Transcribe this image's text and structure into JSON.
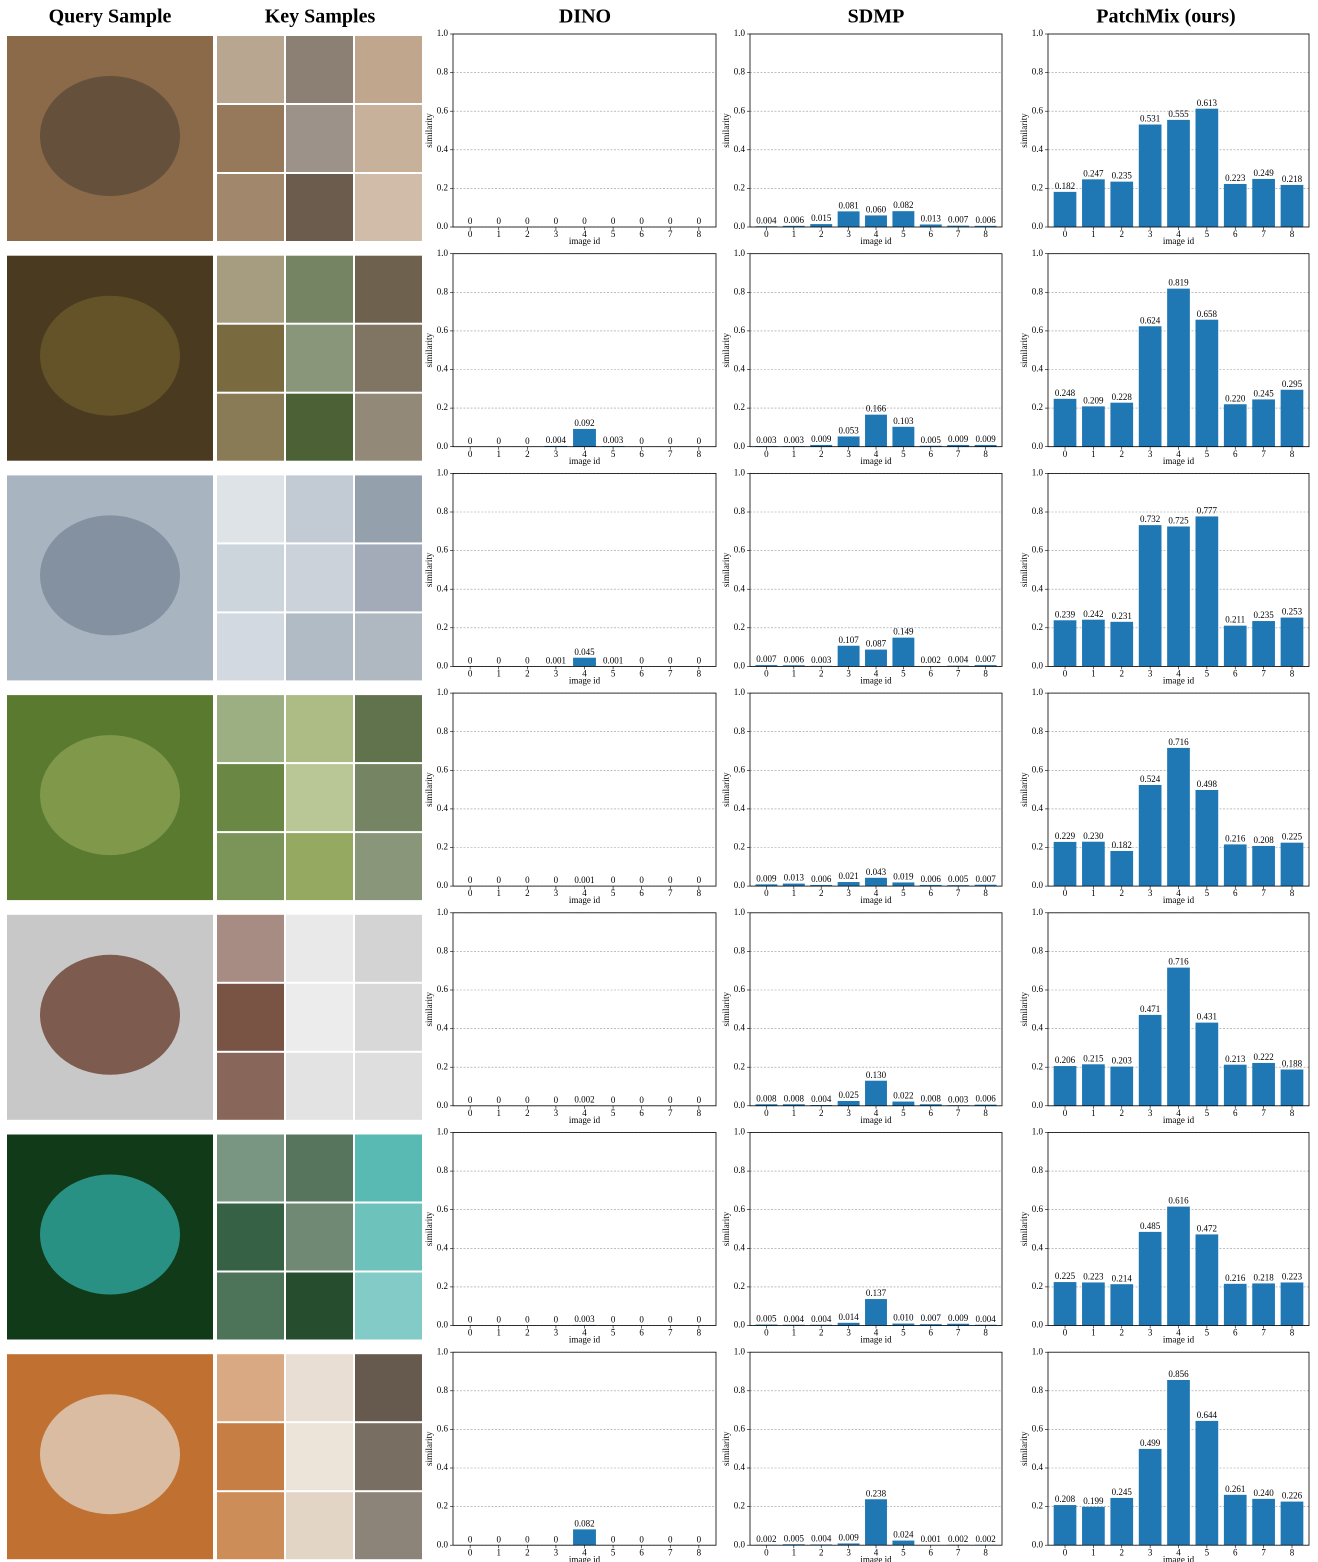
{
  "header": [
    "Query Sample",
    "Key Samples",
    "DINO",
    "SDMP",
    "PatchMix (ours)"
  ],
  "chart_data": [
    {
      "type": "bar",
      "categories": [
        "0",
        "1",
        "2",
        "3",
        "4",
        "5",
        "6",
        "7",
        "8"
      ],
      "values": [
        0,
        0,
        0,
        0,
        0,
        0,
        0,
        0,
        0
      ],
      "value_labels": [
        "0",
        "0",
        "0",
        "0",
        "0",
        "0",
        "0",
        "0",
        "0"
      ],
      "color": "#1f77b4",
      "ylim": [
        0,
        1
      ],
      "yticks": [
        {
          "value": 0,
          "label": "0.0"
        },
        0.2,
        0.4,
        0.6,
        0.8,
        {
          "value": 1,
          "label": "1.0"
        }
      ],
      "xlabel": "image id",
      "ylabel": "similarity",
      "grid": true
    },
    {
      "type": "bar",
      "categories": [
        "0",
        "1",
        "2",
        "3",
        "4",
        "5",
        "6",
        "7",
        "8"
      ],
      "values": [
        0.004,
        0.006,
        0.015,
        0.081,
        0.06,
        0.082,
        0.013,
        0.007,
        0.006
      ],
      "value_labels": [
        "0.004",
        "0.006",
        "0.015",
        "0.081",
        "0.060",
        "0.082",
        "0.013",
        "0.007",
        "0.006"
      ],
      "color": "#1f77b4",
      "ylim": [
        0,
        1
      ],
      "yticks": [
        {
          "value": 0,
          "label": "0.0"
        },
        0.2,
        0.4,
        0.6,
        0.8,
        {
          "value": 1,
          "label": "1.0"
        }
      ],
      "xlabel": "image id",
      "ylabel": "similarity",
      "grid": true
    },
    {
      "type": "bar",
      "categories": [
        "0",
        "1",
        "2",
        "3",
        "4",
        "5",
        "6",
        "7",
        "8"
      ],
      "values": [
        0.182,
        0.247,
        0.235,
        0.531,
        0.555,
        0.613,
        0.223,
        0.249,
        0.218
      ],
      "value_labels": [
        "0.182",
        "0.247",
        "0.235",
        "0.531",
        "0.555",
        "0.613",
        "0.223",
        "0.249",
        "0.218"
      ],
      "color": "#1f77b4",
      "ylim": [
        0,
        1
      ],
      "yticks": [
        {
          "value": 0,
          "label": "0.0"
        },
        0.2,
        0.4,
        0.6,
        0.8,
        {
          "value": 1,
          "label": "1.0"
        }
      ],
      "xlabel": "image id",
      "ylabel": "similarity",
      "grid": true
    },
    {
      "type": "bar",
      "categories": [
        "0",
        "1",
        "2",
        "3",
        "4",
        "5",
        "6",
        "7",
        "8"
      ],
      "values": [
        0,
        0,
        0,
        0.004,
        0.092,
        0.003,
        0,
        0,
        0
      ],
      "value_labels": [
        "0",
        "0",
        "0",
        "0.004",
        "0.092",
        "0.003",
        "0",
        "0",
        "0"
      ],
      "color": "#1f77b4",
      "ylim": [
        0,
        1
      ],
      "yticks": [
        {
          "value": 0,
          "label": "0.0"
        },
        0.2,
        0.4,
        0.6,
        0.8,
        {
          "value": 1,
          "label": "1.0"
        }
      ],
      "xlabel": "image id",
      "ylabel": "similarity",
      "grid": true
    },
    {
      "type": "bar",
      "categories": [
        "0",
        "1",
        "2",
        "3",
        "4",
        "5",
        "6",
        "7",
        "8"
      ],
      "values": [
        0.003,
        0.003,
        0.009,
        0.053,
        0.166,
        0.103,
        0.005,
        0.009,
        0.009
      ],
      "value_labels": [
        "0.003",
        "0.003",
        "0.009",
        "0.053",
        "0.166",
        "0.103",
        "0.005",
        "0.009",
        "0.009"
      ],
      "color": "#1f77b4",
      "ylim": [
        0,
        1
      ],
      "yticks": [
        {
          "value": 0,
          "label": "0.0"
        },
        0.2,
        0.4,
        0.6,
        0.8,
        {
          "value": 1,
          "label": "1.0"
        }
      ],
      "xlabel": "image id",
      "ylabel": "similarity",
      "grid": true
    },
    {
      "type": "bar",
      "categories": [
        "0",
        "1",
        "2",
        "3",
        "4",
        "5",
        "6",
        "7",
        "8"
      ],
      "values": [
        0.248,
        0.209,
        0.228,
        0.624,
        0.819,
        0.658,
        0.22,
        0.245,
        0.295
      ],
      "value_labels": [
        "0.248",
        "0.209",
        "0.228",
        "0.624",
        "0.819",
        "0.658",
        "0.220",
        "0.245",
        "0.295"
      ],
      "color": "#1f77b4",
      "ylim": [
        0,
        1
      ],
      "yticks": [
        {
          "value": 0,
          "label": "0.0"
        },
        0.2,
        0.4,
        0.6,
        0.8,
        {
          "value": 1,
          "label": "1.0"
        }
      ],
      "xlabel": "image id",
      "ylabel": "similarity",
      "grid": true
    },
    {
      "type": "bar",
      "categories": [
        "0",
        "1",
        "2",
        "3",
        "4",
        "5",
        "6",
        "7",
        "8"
      ],
      "values": [
        0,
        0,
        0,
        0.001,
        0.045,
        0.001,
        0,
        0,
        0
      ],
      "value_labels": [
        "0",
        "0",
        "0",
        "0.001",
        "0.045",
        "0.001",
        "0",
        "0",
        "0"
      ],
      "color": "#1f77b4",
      "ylim": [
        0,
        1
      ],
      "yticks": [
        {
          "value": 0,
          "label": "0.0"
        },
        0.2,
        0.4,
        0.6,
        0.8,
        {
          "value": 1,
          "label": "1.0"
        }
      ],
      "xlabel": "image id",
      "ylabel": "similarity",
      "grid": true
    },
    {
      "type": "bar",
      "categories": [
        "0",
        "1",
        "2",
        "3",
        "4",
        "5",
        "6",
        "7",
        "8"
      ],
      "values": [
        0.007,
        0.006,
        0.003,
        0.107,
        0.087,
        0.149,
        0.002,
        0.004,
        0.007
      ],
      "value_labels": [
        "0.007",
        "0.006",
        "0.003",
        "0.107",
        "0.087",
        "0.149",
        "0.002",
        "0.004",
        "0.007"
      ],
      "color": "#1f77b4",
      "ylim": [
        0,
        1
      ],
      "yticks": [
        {
          "value": 0,
          "label": "0.0"
        },
        0.2,
        0.4,
        0.6,
        0.8,
        {
          "value": 1,
          "label": "1.0"
        }
      ],
      "xlabel": "image id",
      "ylabel": "similarity",
      "grid": true
    },
    {
      "type": "bar",
      "categories": [
        "0",
        "1",
        "2",
        "3",
        "4",
        "5",
        "6",
        "7",
        "8"
      ],
      "values": [
        0.239,
        0.242,
        0.231,
        0.732,
        0.725,
        0.777,
        0.211,
        0.235,
        0.253
      ],
      "value_labels": [
        "0.239",
        "0.242",
        "0.231",
        "0.732",
        "0.725",
        "0.777",
        "0.211",
        "0.235",
        "0.253"
      ],
      "color": "#1f77b4",
      "ylim": [
        0,
        1
      ],
      "yticks": [
        {
          "value": 0,
          "label": "0.0"
        },
        0.2,
        0.4,
        0.6,
        0.8,
        {
          "value": 1,
          "label": "1.0"
        }
      ],
      "xlabel": "image id",
      "ylabel": "similarity",
      "grid": true
    },
    {
      "type": "bar",
      "categories": [
        "0",
        "1",
        "2",
        "3",
        "4",
        "5",
        "6",
        "7",
        "8"
      ],
      "values": [
        0,
        0,
        0,
        0,
        0.001,
        0,
        0,
        0,
        0
      ],
      "value_labels": [
        "0",
        "0",
        "0",
        "0",
        "0.001",
        "0",
        "0",
        "0",
        "0"
      ],
      "color": "#1f77b4",
      "ylim": [
        0,
        1
      ],
      "yticks": [
        {
          "value": 0,
          "label": "0.0"
        },
        0.2,
        0.4,
        0.6,
        0.8,
        {
          "value": 1,
          "label": "1.0"
        }
      ],
      "xlabel": "image id",
      "ylabel": "similarity",
      "grid": true
    },
    {
      "type": "bar",
      "categories": [
        "0",
        "1",
        "2",
        "3",
        "4",
        "5",
        "6",
        "7",
        "8"
      ],
      "values": [
        0.009,
        0.013,
        0.006,
        0.021,
        0.043,
        0.019,
        0.006,
        0.005,
        0.007
      ],
      "value_labels": [
        "0.009",
        "0.013",
        "0.006",
        "0.021",
        "0.043",
        "0.019",
        "0.006",
        "0.005",
        "0.007"
      ],
      "color": "#1f77b4",
      "ylim": [
        0,
        1
      ],
      "yticks": [
        {
          "value": 0,
          "label": "0.0"
        },
        0.2,
        0.4,
        0.6,
        0.8,
        {
          "value": 1,
          "label": "1.0"
        }
      ],
      "xlabel": "image id",
      "ylabel": "similarity",
      "grid": true
    },
    {
      "type": "bar",
      "categories": [
        "0",
        "1",
        "2",
        "3",
        "4",
        "5",
        "6",
        "7",
        "8"
      ],
      "values": [
        0.229,
        0.23,
        0.182,
        0.524,
        0.716,
        0.498,
        0.216,
        0.208,
        0.225
      ],
      "value_labels": [
        "0.229",
        "0.230",
        "0.182",
        "0.524",
        "0.716",
        "0.498",
        "0.216",
        "0.208",
        "0.225"
      ],
      "color": "#1f77b4",
      "ylim": [
        0,
        1
      ],
      "yticks": [
        {
          "value": 0,
          "label": "0.0"
        },
        0.2,
        0.4,
        0.6,
        0.8,
        {
          "value": 1,
          "label": "1.0"
        }
      ],
      "xlabel": "image id",
      "ylabel": "similarity",
      "grid": true
    },
    {
      "type": "bar",
      "categories": [
        "0",
        "1",
        "2",
        "3",
        "4",
        "5",
        "6",
        "7",
        "8"
      ],
      "values": [
        0,
        0,
        0,
        0,
        0.002,
        0,
        0,
        0,
        0
      ],
      "value_labels": [
        "0",
        "0",
        "0",
        "0",
        "0.002",
        "0",
        "0",
        "0",
        "0"
      ],
      "color": "#1f77b4",
      "ylim": [
        0,
        1
      ],
      "yticks": [
        {
          "value": 0,
          "label": "0.0"
        },
        0.2,
        0.4,
        0.6,
        0.8,
        {
          "value": 1,
          "label": "1.0"
        }
      ],
      "xlabel": "image id",
      "ylabel": "similarity",
      "grid": true
    },
    {
      "type": "bar",
      "categories": [
        "0",
        "1",
        "2",
        "3",
        "4",
        "5",
        "6",
        "7",
        "8"
      ],
      "values": [
        0.008,
        0.008,
        0.004,
        0.025,
        0.13,
        0.022,
        0.008,
        0.003,
        0.006
      ],
      "value_labels": [
        "0.008",
        "0.008",
        "0.004",
        "0.025",
        "0.130",
        "0.022",
        "0.008",
        "0.003",
        "0.006"
      ],
      "color": "#1f77b4",
      "ylim": [
        0,
        1
      ],
      "yticks": [
        {
          "value": 0,
          "label": "0.0"
        },
        0.2,
        0.4,
        0.6,
        0.8,
        {
          "value": 1,
          "label": "1.0"
        }
      ],
      "xlabel": "image id",
      "ylabel": "similarity",
      "grid": true
    },
    {
      "type": "bar",
      "categories": [
        "0",
        "1",
        "2",
        "3",
        "4",
        "5",
        "6",
        "7",
        "8"
      ],
      "values": [
        0.206,
        0.215,
        0.203,
        0.471,
        0.716,
        0.431,
        0.213,
        0.222,
        0.188
      ],
      "value_labels": [
        "0.206",
        "0.215",
        "0.203",
        "0.471",
        "0.716",
        "0.431",
        "0.213",
        "0.222",
        "0.188"
      ],
      "color": "#1f77b4",
      "ylim": [
        0,
        1
      ],
      "yticks": [
        {
          "value": 0,
          "label": "0.0"
        },
        0.2,
        0.4,
        0.6,
        0.8,
        {
          "value": 1,
          "label": "1.0"
        }
      ],
      "xlabel": "image id",
      "ylabel": "similarity",
      "grid": true
    },
    {
      "type": "bar",
      "categories": [
        "0",
        "1",
        "2",
        "3",
        "4",
        "5",
        "6",
        "7",
        "8"
      ],
      "values": [
        0,
        0,
        0,
        0,
        0.003,
        0,
        0,
        0,
        0
      ],
      "value_labels": [
        "0",
        "0",
        "0",
        "0",
        "0.003",
        "0",
        "0",
        "0",
        "0"
      ],
      "color": "#1f77b4",
      "ylim": [
        0,
        1
      ],
      "yticks": [
        {
          "value": 0,
          "label": "0.0"
        },
        0.2,
        0.4,
        0.6,
        0.8,
        {
          "value": 1,
          "label": "1.0"
        }
      ],
      "xlabel": "image id",
      "ylabel": "similarity",
      "grid": true
    },
    {
      "type": "bar",
      "categories": [
        "0",
        "1",
        "2",
        "3",
        "4",
        "5",
        "6",
        "7",
        "8"
      ],
      "values": [
        0.005,
        0.004,
        0.004,
        0.014,
        0.137,
        0.01,
        0.007,
        0.009,
        0.004
      ],
      "value_labels": [
        "0.005",
        "0.004",
        "0.004",
        "0.014",
        "0.137",
        "0.010",
        "0.007",
        "0.009",
        "0.004"
      ],
      "color": "#1f77b4",
      "ylim": [
        0,
        1
      ],
      "yticks": [
        {
          "value": 0,
          "label": "0.0"
        },
        0.2,
        0.4,
        0.6,
        0.8,
        {
          "value": 1,
          "label": "1.0"
        }
      ],
      "xlabel": "image id",
      "ylabel": "similarity",
      "grid": true
    },
    {
      "type": "bar",
      "categories": [
        "0",
        "1",
        "2",
        "3",
        "4",
        "5",
        "6",
        "7",
        "8"
      ],
      "values": [
        0.225,
        0.223,
        0.214,
        0.485,
        0.616,
        0.472,
        0.216,
        0.218,
        0.223
      ],
      "value_labels": [
        "0.225",
        "0.223",
        "0.214",
        "0.485",
        "0.616",
        "0.472",
        "0.216",
        "0.218",
        "0.223"
      ],
      "color": "#1f77b4",
      "ylim": [
        0,
        1
      ],
      "yticks": [
        {
          "value": 0,
          "label": "0.0"
        },
        0.2,
        0.4,
        0.6,
        0.8,
        {
          "value": 1,
          "label": "1.0"
        }
      ],
      "xlabel": "image id",
      "ylabel": "similarity",
      "grid": true
    },
    {
      "type": "bar",
      "categories": [
        "0",
        "1",
        "2",
        "3",
        "4",
        "5",
        "6",
        "7",
        "8"
      ],
      "values": [
        0,
        0,
        0,
        0,
        0.082,
        0,
        0,
        0,
        0
      ],
      "value_labels": [
        "0",
        "0",
        "0",
        "0",
        "0.082",
        "0",
        "0",
        "0",
        "0"
      ],
      "color": "#1f77b4",
      "ylim": [
        0,
        1
      ],
      "yticks": [
        {
          "value": 0,
          "label": "0.0"
        },
        0.2,
        0.4,
        0.6,
        0.8,
        {
          "value": 1,
          "label": "1.0"
        }
      ],
      "xlabel": "image id",
      "ylabel": "similarity",
      "grid": true
    },
    {
      "type": "bar",
      "categories": [
        "0",
        "1",
        "2",
        "3",
        "4",
        "5",
        "6",
        "7",
        "8"
      ],
      "values": [
        0.002,
        0.005,
        0.004,
        0.009,
        0.238,
        0.024,
        0.001,
        0.002,
        0.002
      ],
      "value_labels": [
        "0.002",
        "0.005",
        "0.004",
        "0.009",
        "0.238",
        "0.024",
        "0.001",
        "0.002",
        "0.002"
      ],
      "color": "#1f77b4",
      "ylim": [
        0,
        1
      ],
      "yticks": [
        {
          "value": 0,
          "label": "0.0"
        },
        0.2,
        0.4,
        0.6,
        0.8,
        {
          "value": 1,
          "label": "1.0"
        }
      ],
      "xlabel": "image id",
      "ylabel": "similarity",
      "grid": true
    },
    {
      "type": "bar",
      "categories": [
        "0",
        "1",
        "2",
        "3",
        "4",
        "5",
        "6",
        "7",
        "8"
      ],
      "values": [
        0.208,
        0.199,
        0.245,
        0.499,
        0.856,
        0.644,
        0.261,
        0.24,
        0.226
      ],
      "value_labels": [
        "0.208",
        "0.199",
        "0.245",
        "0.499",
        "0.856",
        "0.644",
        "0.261",
        "0.240",
        "0.226"
      ],
      "color": "#1f77b4",
      "ylim": [
        0,
        1
      ],
      "yticks": [
        {
          "value": 0,
          "label": "0.0"
        },
        0.2,
        0.4,
        0.6,
        0.8,
        {
          "value": 1,
          "label": "1.0"
        }
      ],
      "xlabel": "image id",
      "ylabel": "similarity",
      "grid": true
    }
  ]
}
